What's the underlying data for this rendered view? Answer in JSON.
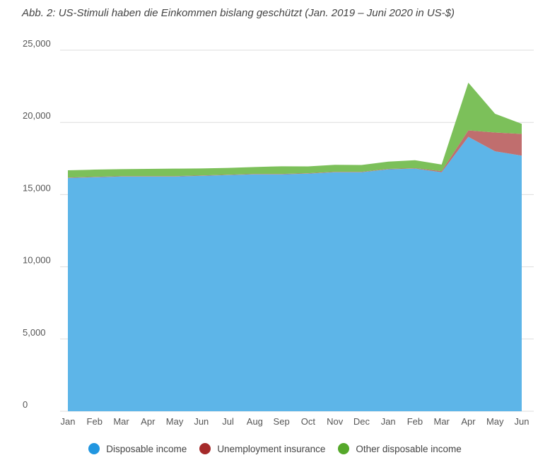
{
  "chart_data": {
    "type": "area",
    "stacked": true,
    "title": "Abb. 2: US-Stimuli haben die Einkommen bislang geschützt (Jan. 2019 – Juni 2020 in US-$)",
    "xlabel": "",
    "ylabel": "",
    "categories": [
      "Jan",
      "Feb",
      "Mar",
      "Apr",
      "May",
      "Jun",
      "Jul",
      "Aug",
      "Sep",
      "Oct",
      "Nov",
      "Dec",
      "Jan",
      "Feb",
      "Mar",
      "Apr",
      "May",
      "Jun"
    ],
    "ylim": [
      0,
      25000
    ],
    "yticks": [
      0,
      5000,
      10000,
      15000,
      20000,
      25000
    ],
    "ytick_labels": [
      "0",
      "5,000",
      "10,000",
      "15,000",
      "20,000",
      "25,000"
    ],
    "grid": true,
    "legend_position": "bottom",
    "series": [
      {
        "name": "Disposable income",
        "color": "#5db5e8",
        "legend_color": "#2196e0",
        "values": [
          16150,
          16200,
          16250,
          16250,
          16250,
          16300,
          16350,
          16400,
          16400,
          16450,
          16550,
          16550,
          16750,
          16800,
          16550,
          19000,
          18000,
          17700
        ]
      },
      {
        "name": "Unemployment insurance",
        "color": "#c06e6e",
        "legend_color": "#a52a2a",
        "values": [
          30,
          30,
          30,
          30,
          30,
          30,
          30,
          30,
          30,
          30,
          30,
          30,
          30,
          30,
          80,
          450,
          1300,
          1500
        ]
      },
      {
        "name": "Other disposable income",
        "color": "#7cc05a",
        "legend_color": "#55a82a",
        "values": [
          500,
          500,
          480,
          500,
          520,
          480,
          470,
          480,
          530,
          470,
          480,
          470,
          500,
          550,
          450,
          3300,
          1300,
          700
        ]
      }
    ]
  }
}
